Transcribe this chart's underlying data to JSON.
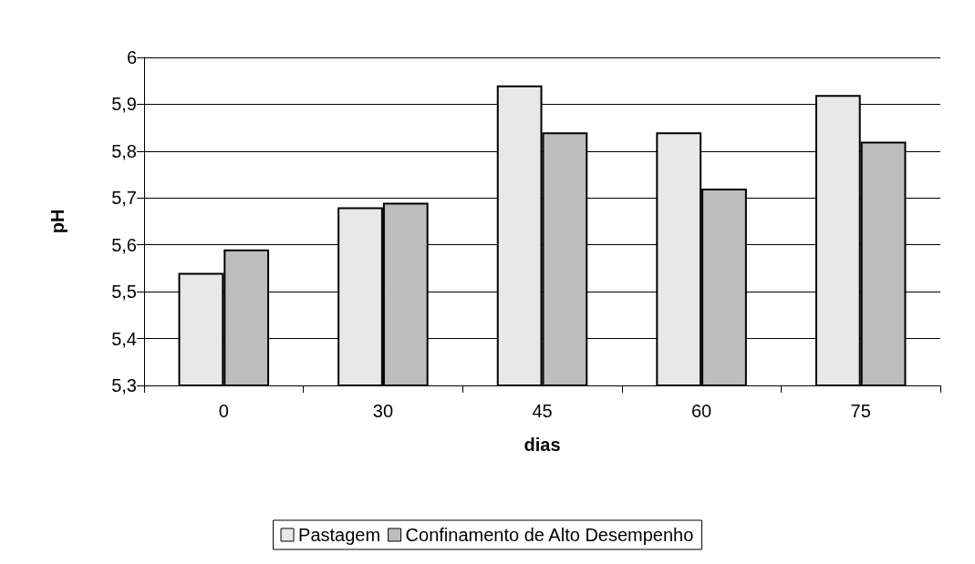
{
  "chart_data": {
    "type": "bar",
    "xlabel": "dias",
    "ylabel": "pH",
    "categories": [
      "0",
      "30",
      "45",
      "60",
      "75"
    ],
    "series": [
      {
        "name": "Pastagem",
        "color": "#e8e8e8",
        "values": [
          5.54,
          5.68,
          5.94,
          5.84,
          5.92
        ]
      },
      {
        "name": "Confinamento de Alto Desempenho",
        "color": "#bdbdbd",
        "values": [
          5.59,
          5.69,
          5.84,
          5.72,
          5.82
        ]
      }
    ],
    "ylim": [
      5.3,
      6
    ],
    "yticks": [
      {
        "value": 5.3,
        "label": "5,3"
      },
      {
        "value": 5.4,
        "label": "5,4"
      },
      {
        "value": 5.5,
        "label": "5,5"
      },
      {
        "value": 5.6,
        "label": "5,6"
      },
      {
        "value": 5.7,
        "label": "5,7"
      },
      {
        "value": 5.8,
        "label": "5,8"
      },
      {
        "value": 5.9,
        "label": "5,9"
      },
      {
        "value": 6,
        "label": "6"
      }
    ],
    "grid": "y",
    "legend": "bottom"
  }
}
